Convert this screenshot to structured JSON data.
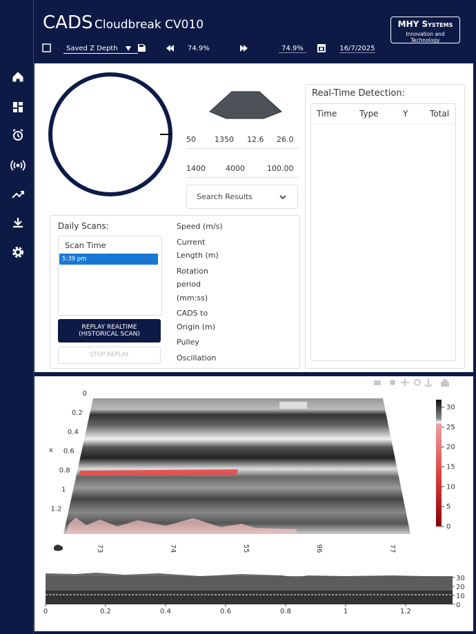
{
  "header": {
    "brand": "CADS",
    "site": "Cloudbreak CV010",
    "logo_title": "MHY Systems",
    "logo_tagline": "Innovation and Technology"
  },
  "toolbar": {
    "depth_select": "Saved Z Depth",
    "rewind_value": "74.9%",
    "forward_value": "74.9%",
    "date": "16/7/2025"
  },
  "metrics": {
    "row1": [
      "50",
      "1350",
      "12.6",
      "26.0"
    ],
    "row2": [
      "1400",
      "4000",
      "100.00"
    ],
    "search": "Search Results"
  },
  "detection": {
    "title": "Real-Time Detection:",
    "columns": [
      "Time",
      "Type",
      "Y",
      "Total"
    ]
  },
  "daily_scans": {
    "title": "Daily Scans:",
    "list_header": "Scan Time",
    "items": [
      "5:39 pm"
    ],
    "replay_button": "REPLAY REALTIME (HISTORICAL SCAN)",
    "stop_button": "STOP REPLAY"
  },
  "status_labels": [
    "Speed (m/s)",
    "Current Length (m)",
    "Rotation period (mm:ss)",
    "CADS to Origin (m)",
    "Pulley",
    "Oscillation"
  ],
  "heatmap": {
    "y_axis_label": "x",
    "y_ticks": [
      0,
      0.2,
      0.4,
      0.6,
      0.8,
      1,
      1.2
    ],
    "x_tick_labels": [
      "73",
      "74",
      "55",
      "96",
      "77"
    ],
    "colorbar_ticks": [
      0,
      5,
      10,
      15,
      20,
      25,
      30
    ]
  },
  "profile": {
    "xticks": [
      0,
      0.2,
      0.4,
      0.6,
      0.8,
      1,
      1.2
    ],
    "yticks": [
      0,
      10,
      20,
      30
    ]
  }
}
